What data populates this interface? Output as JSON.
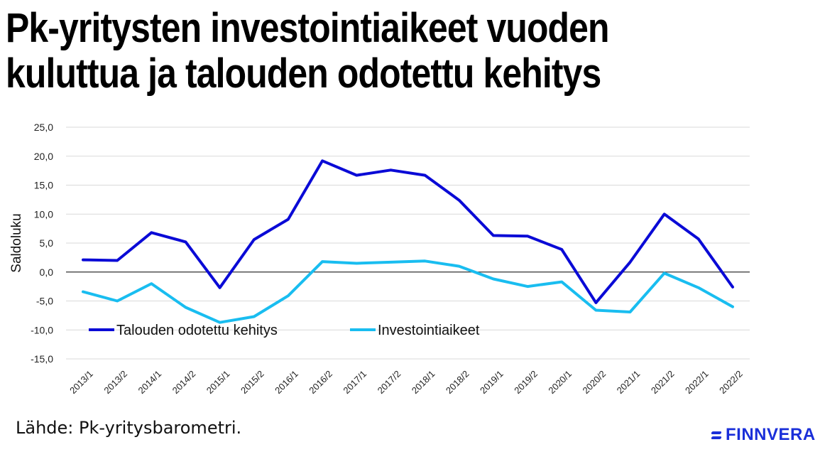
{
  "title_line1": "Pk-yritysten investointiaikeet vuoden",
  "title_line2": "kuluttua ja talouden odotettu kehitys",
  "source": "Lähde: Pk-yritysbarometri.",
  "logo_text": "FINNVERA",
  "colors": {
    "series1": "#0a0ad6",
    "series2": "#19bdf0",
    "grid": "#d9d9d9",
    "zero": "#333333",
    "logo": "#1a2fd9"
  },
  "chart_data": {
    "type": "line",
    "title": "Pk-yritysten investointiaikeet vuoden kuluttua ja talouden odotettu kehitys",
    "xlabel": "",
    "ylabel": "Saldoluku",
    "ylim": [
      -15,
      25
    ],
    "yticks": [
      25,
      20,
      15,
      10,
      5,
      0,
      -5,
      -10,
      -15
    ],
    "ytick_labels": [
      "25,0",
      "20,0",
      "15,0",
      "10,0",
      "5,0",
      "0,0",
      "-5,0",
      "-10,0",
      "-15,0"
    ],
    "grid": true,
    "legend_position": "bottom-left inside",
    "categories": [
      "2013/1",
      "2013/2",
      "2014/1",
      "2014/2",
      "2015/1",
      "2015/2",
      "2016/1",
      "2016/2",
      "2017/1",
      "2017/2",
      "2018/1",
      "2018/2",
      "2019/1",
      "2019/2",
      "2020/1",
      "2020/2",
      "2021/1",
      "2021/2",
      "2022/1",
      "2022/2"
    ],
    "series": [
      {
        "name": "Talouden odotettu kehitys",
        "values": [
          2.1,
          2.0,
          6.8,
          5.2,
          -2.7,
          5.6,
          9.1,
          19.2,
          16.7,
          17.6,
          16.7,
          12.4,
          6.3,
          6.2,
          3.9,
          -5.3,
          1.7,
          10.0,
          5.7,
          -2.6
        ]
      },
      {
        "name": "Investointiaikeet",
        "values": [
          -3.4,
          -5.0,
          -2.0,
          -6.1,
          -8.7,
          -7.7,
          -4.1,
          1.8,
          1.5,
          1.7,
          1.9,
          1.0,
          -1.2,
          -2.5,
          -1.7,
          -6.6,
          -6.9,
          -0.2,
          -2.7,
          -6.0
        ]
      }
    ]
  }
}
